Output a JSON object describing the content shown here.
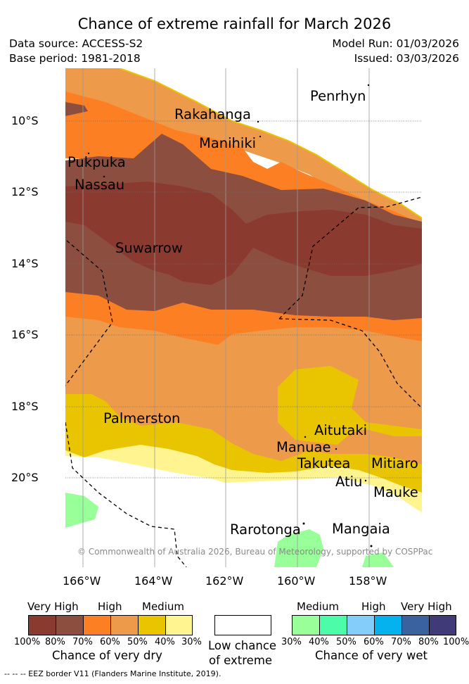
{
  "title": "Chance of extreme rainfall for March 2026",
  "header": {
    "data_source": "Data source: ACCESS-S2",
    "base_period": "Base period: 1981-2018",
    "model_run": "Model Run: 01/03/2026",
    "issued": "Issued: 03/03/2026"
  },
  "map": {
    "copyright": "© Commonwealth of Australia 2026, Bureau of Meteorology, supported by COSPPac",
    "lat_ticks": [
      "10°S",
      "12°S",
      "14°S",
      "16°S",
      "18°S",
      "20°S"
    ],
    "lon_ticks": [
      "166°W",
      "164°W",
      "162°W",
      "160°W",
      "158°W"
    ],
    "islands": [
      "Penrhyn",
      "Rakahanga",
      "Manihiki",
      "Pukpuka",
      "Nassau",
      "Suwarrow",
      "Palmerston",
      "Aitutaki",
      "Manuae",
      "Takutea",
      "Mitiaro",
      "Atiu",
      "Mauke",
      "Rarotonga",
      "Mangaia"
    ]
  },
  "legend": {
    "dry": {
      "headings": [
        "Very High",
        "High",
        "Medium"
      ],
      "ticks": [
        "100%",
        "80%",
        "70%",
        "60%",
        "50%",
        "40%",
        "30%"
      ],
      "caption": "Chance of very dry",
      "colors": [
        "#8b3a2f",
        "#8c4e3f",
        "#fd7f23",
        "#ed9a4a",
        "#e9c400",
        "#fff48f"
      ]
    },
    "low": {
      "caption_line1": "Low chance",
      "caption_line2": "of extreme"
    },
    "wet": {
      "headings": [
        "Medium",
        "High",
        "Very High"
      ],
      "ticks": [
        "30%",
        "40%",
        "50%",
        "60%",
        "70%",
        "80%",
        "100%"
      ],
      "caption": "Chance of very wet",
      "colors": [
        "#99ff99",
        "#4dfca8",
        "#84ccf9",
        "#05b2ee",
        "#3a629f",
        "#403b78"
      ]
    }
  },
  "footnote": "--  --  -- EEZ border V11 (Flanders Marine Institute, 2019)."
}
